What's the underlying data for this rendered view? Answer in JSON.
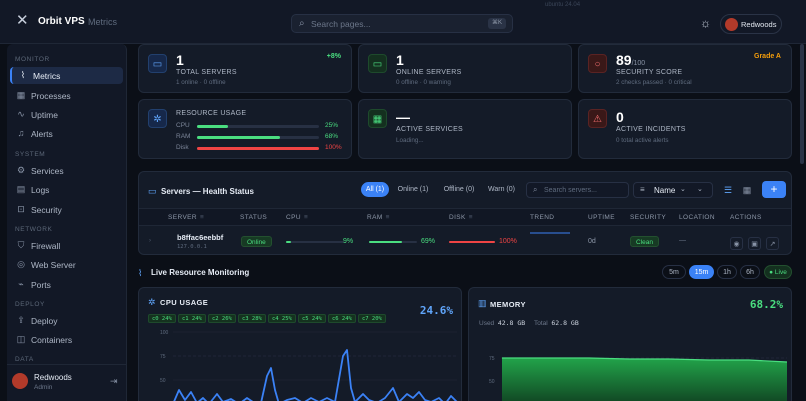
{
  "topbar": {
    "brand": "Orbit VPS",
    "crumb": "Metrics",
    "search_placeholder": "Search pages...",
    "search_kbd": "⌘K",
    "ghost_text": "ubuntu  24.04",
    "user_name": "Redwoods"
  },
  "sidebar": {
    "sections": {
      "monitor": "MONITOR",
      "system": "SYSTEM",
      "network": "NETWORK",
      "deploy": "DEPLOY",
      "data": "DATA"
    },
    "items": [
      {
        "label": "Metrics",
        "icon": "chart-icon",
        "active": true
      },
      {
        "label": "Processes",
        "icon": "grid-icon"
      },
      {
        "label": "Uptime",
        "icon": "pulse-icon"
      },
      {
        "label": "Alerts",
        "icon": "bell-icon"
      },
      {
        "label": "Services",
        "icon": "gear-icon"
      },
      {
        "label": "Logs",
        "icon": "file-icon"
      },
      {
        "label": "Security",
        "icon": "lock-icon"
      },
      {
        "label": "Firewall",
        "icon": "shield-icon"
      },
      {
        "label": "Web Server",
        "icon": "globe-icon"
      },
      {
        "label": "Ports",
        "icon": "plug-icon"
      },
      {
        "label": "Deploy",
        "icon": "rocket-icon"
      },
      {
        "label": "Containers",
        "icon": "box-icon"
      }
    ],
    "user": {
      "name": "Redwoods",
      "role": "Admin"
    }
  },
  "kpis": {
    "total_servers": {
      "value": "1",
      "title": "TOTAL SERVERS",
      "sub": "1 online · 0 offline",
      "delta": "+8%"
    },
    "online_servers": {
      "value": "1",
      "title": "ONLINE SERVERS",
      "sub": "0 offline · 0 warning"
    },
    "security_score": {
      "value": "89",
      "max": "/100",
      "title": "SECURITY SCORE",
      "sub": "2 checks passed · 0 critical",
      "grade": "Grade A"
    },
    "resource_usage": {
      "title": "RESOURCE USAGE",
      "rows": [
        {
          "label": "CPU",
          "percent": "25%",
          "fraction": 0.25,
          "color": "#4ade80"
        },
        {
          "label": "RAM",
          "percent": "68%",
          "fraction": 0.68,
          "color": "#4ade80"
        },
        {
          "label": "Disk",
          "percent": "100%",
          "fraction": 1.0,
          "color": "#ef4444"
        }
      ]
    },
    "active_services": {
      "value": "—",
      "title": "ACTIVE SERVICES",
      "sub": "Loading..."
    },
    "active_incidents": {
      "value": "0",
      "title": "ACTIVE INCIDENTS",
      "sub": "0 total active alerts"
    }
  },
  "servers": {
    "title": "Servers — Health Status",
    "filters": [
      "All (1)",
      "Online (1)",
      "Offline (0)",
      "Warn (0)"
    ],
    "search_placeholder": "Search servers...",
    "sort_label": "Name",
    "columns": [
      "SERVER",
      "STATUS",
      "CPU",
      "RAM",
      "DISK",
      "TREND",
      "UPTIME",
      "SECURITY",
      "LOCATION",
      "ACTIONS"
    ],
    "rows": [
      {
        "name": "b8ffac6eebbf",
        "ip": "127.0.0.1",
        "status": "Online",
        "cpu": "9%",
        "cpu_fraction": 0.09,
        "ram": "69%",
        "ram_fraction": 0.69,
        "disk": "100%",
        "disk_fraction": 1.0,
        "uptime": "0d",
        "security": "Clean",
        "location": "—"
      }
    ]
  },
  "live": {
    "title": "Live Resource Monitoring",
    "ranges": [
      "5m",
      "15m",
      "1h",
      "6h"
    ],
    "active_range": "15m",
    "live_label": "Live"
  },
  "cpu_chart": {
    "title": "CPU USAGE",
    "value": "24.6%",
    "cores": [
      "c0 24%",
      "c1 24%",
      "c2 26%",
      "c3 28%",
      "c4 25%",
      "c5 24%",
      "c6 24%",
      "c7 20%"
    ],
    "y_ticks": [
      "100",
      "75",
      "50"
    ]
  },
  "memory_chart": {
    "title": "MEMORY",
    "value": "68.2%",
    "used_label": "Used",
    "used_value": "42.8 GB",
    "total_label": "Total",
    "total_value": "62.8 GB",
    "y_ticks": [
      "75",
      "50"
    ]
  },
  "colors": {
    "accent": "#3b82f6",
    "green": "#4ade80",
    "red": "#ef4444",
    "orange": "#f59e0b"
  }
}
